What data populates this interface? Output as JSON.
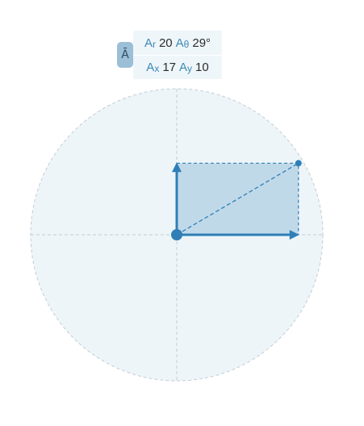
{
  "vector": {
    "symbol": "Ā",
    "polar": {
      "r_symbol": "A",
      "r_sub": "r",
      "r_value": "20",
      "theta_symbol": "A",
      "theta_sub": "θ",
      "theta_value": "29°"
    },
    "components": {
      "x_symbol": "A",
      "x_sub": "x",
      "x_value": "17",
      "y_symbol": "A",
      "y_sub": "y",
      "y_value": "10"
    }
  },
  "diagram": {
    "magnitude": 20,
    "angle_deg": 29,
    "x_component": 17,
    "y_component": 10,
    "colors": {
      "circle_fill": "#edf5f9",
      "guide": "#c3cdd3",
      "vector": "#2f7fb6",
      "rect_fill": "#b7d4e6"
    }
  }
}
